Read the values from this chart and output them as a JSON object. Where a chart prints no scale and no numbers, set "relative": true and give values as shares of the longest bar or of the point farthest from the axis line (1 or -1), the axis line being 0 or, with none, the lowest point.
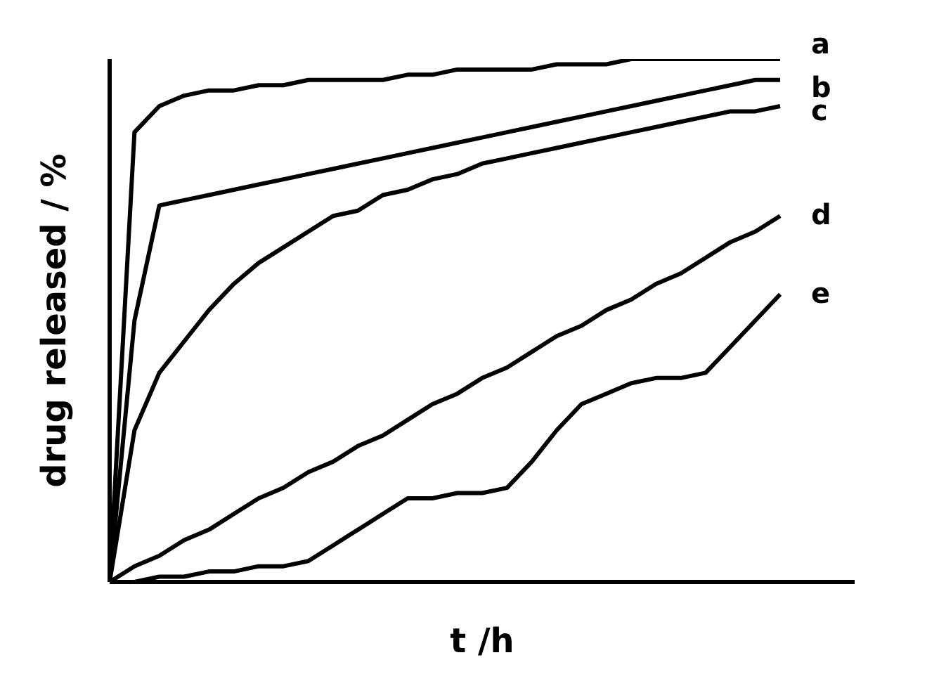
{
  "chart_data": {
    "type": "line",
    "relative": true,
    "xlabel": "t /h",
    "ylabel": "drug released / %",
    "legend": false,
    "grid": false,
    "marker": "none",
    "line_style": "solid",
    "categories": [
      null,
      null,
      null,
      null,
      null,
      null,
      null,
      null,
      null,
      null,
      null,
      null,
      null,
      null,
      null,
      null,
      null,
      null,
      null,
      null,
      null,
      null,
      null,
      null,
      null,
      null,
      null,
      null,
      null,
      null,
      null
    ],
    "series": [
      {
        "name": "a",
        "color": "#000000",
        "values": [
          0,
          0.86,
          0.91,
          0.93,
          0.94,
          0.94,
          0.95,
          0.95,
          0.96,
          0.96,
          0.96,
          0.96,
          0.97,
          0.97,
          0.98,
          0.98,
          0.98,
          0.98,
          0.99,
          0.99,
          0.99,
          1,
          1,
          1,
          1,
          1,
          1,
          1,
          null,
          null,
          null
        ]
      },
      {
        "name": "b",
        "color": "#000000",
        "values": [
          0,
          0.5,
          0.72,
          0.73,
          0.74,
          0.75,
          0.76,
          0.77,
          0.78,
          0.79,
          0.8,
          0.81,
          0.82,
          0.83,
          0.84,
          0.85,
          0.86,
          0.87,
          0.88,
          0.89,
          0.9,
          0.91,
          0.92,
          0.93,
          0.94,
          0.95,
          0.96,
          0.96,
          null,
          null,
          null
        ]
      },
      {
        "name": "c",
        "color": "#000000",
        "values": [
          0,
          0.29,
          0.4,
          0.46,
          0.52,
          0.57,
          0.61,
          0.64,
          0.67,
          0.7,
          0.71,
          0.74,
          0.75,
          0.77,
          0.78,
          0.8,
          0.81,
          0.82,
          0.83,
          0.84,
          0.85,
          0.86,
          0.87,
          0.88,
          0.89,
          0.9,
          0.9,
          0.91,
          null,
          null,
          null
        ]
      },
      {
        "name": "d",
        "color": "#000000",
        "values": [
          0,
          0.03,
          0.05,
          0.08,
          0.1,
          0.13,
          0.16,
          0.18,
          0.21,
          0.23,
          0.26,
          0.28,
          0.31,
          0.34,
          0.36,
          0.39,
          0.41,
          0.44,
          0.47,
          0.49,
          0.52,
          0.54,
          0.57,
          0.59,
          0.62,
          0.65,
          0.67,
          0.7,
          null,
          null,
          null
        ]
      },
      {
        "name": "e",
        "color": "#000000",
        "values": [
          0,
          0,
          0.01,
          0.01,
          0.02,
          0.02,
          0.03,
          0.03,
          0.04,
          0.07,
          0.1,
          0.13,
          0.16,
          0.16,
          0.17,
          0.17,
          0.18,
          0.23,
          0.29,
          0.34,
          0.36,
          0.38,
          0.39,
          0.39,
          0.4,
          0.45,
          0.5,
          0.55,
          null,
          null,
          null
        ]
      }
    ]
  }
}
